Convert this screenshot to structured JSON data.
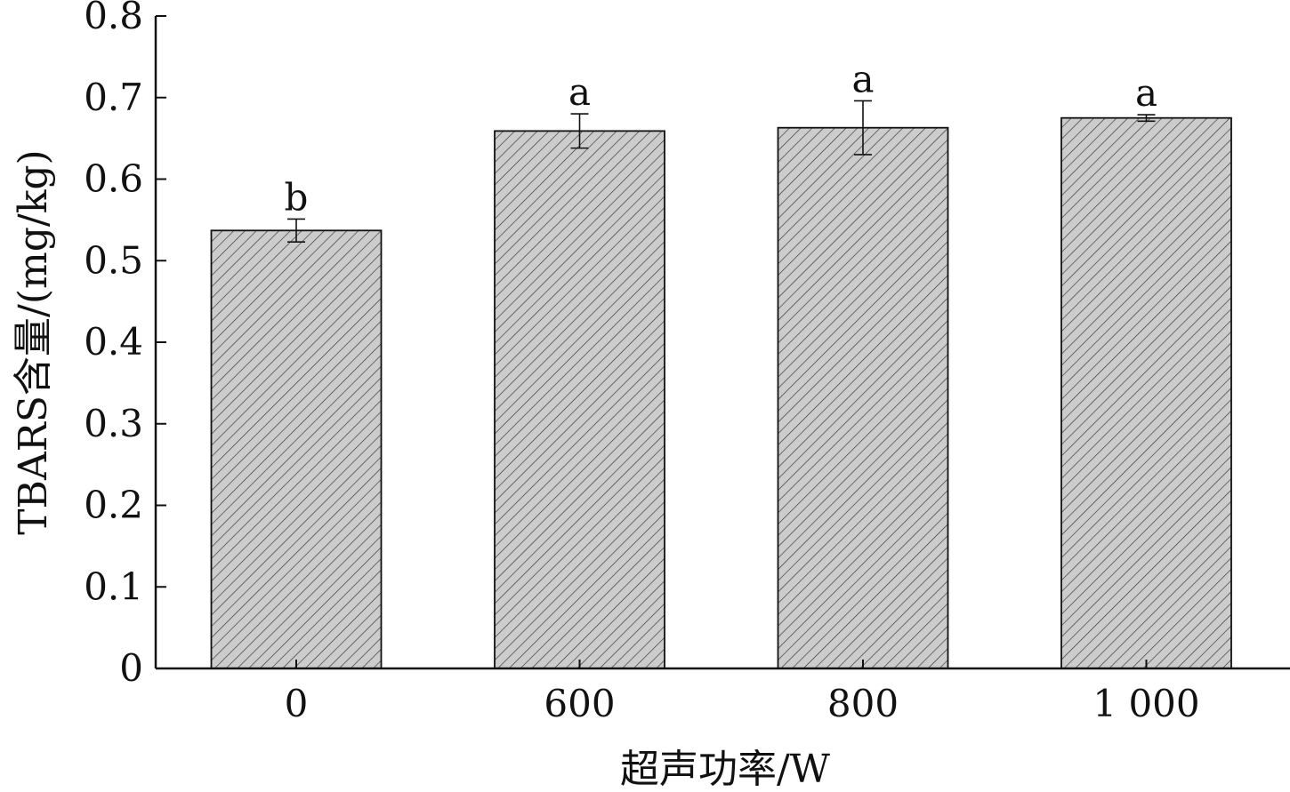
{
  "chart_data": {
    "type": "bar",
    "categories": [
      "0",
      "600",
      "800",
      "1 000"
    ],
    "values": [
      0.537,
      0.659,
      0.663,
      0.675
    ],
    "errors": [
      0.014,
      0.021,
      0.033,
      0.004
    ],
    "significance": [
      "b",
      "a",
      "a",
      "a"
    ],
    "xlabel": "超声功率/W",
    "ylabel": "TBARS含量/(mg/kg)",
    "ylim": [
      0,
      0.8
    ],
    "yticks": [
      "0",
      "0.1",
      "0.2",
      "0.3",
      "0.4",
      "0.5",
      "0.6",
      "0.7",
      "0.8"
    ],
    "grid": false,
    "bar_fill": "#cccccc",
    "bar_hatch": "diagonal",
    "bar_edge": "#111111"
  }
}
